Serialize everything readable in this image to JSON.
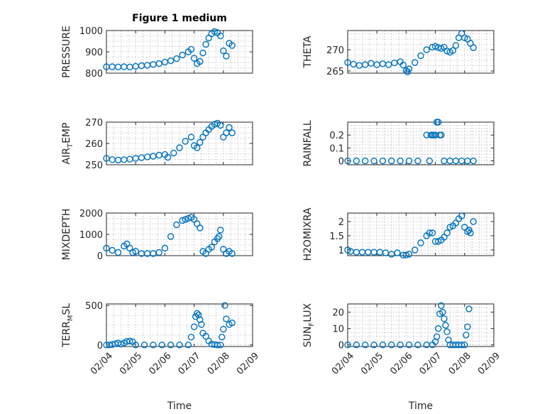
{
  "chart_data": [
    {
      "type": "scatter",
      "title": "Figure 1 medium",
      "xlabel": "",
      "ylabel": "PRESSURE",
      "ylim": [
        800,
        1000
      ],
      "yticks": [
        800,
        900,
        1000
      ],
      "yticklabels": [
        "800",
        "900",
        "1000"
      ],
      "x": [
        4.0,
        4.2,
        4.4,
        4.6,
        4.8,
        5.0,
        5.2,
        5.4,
        5.6,
        5.8,
        6.0,
        6.2,
        6.4,
        6.6,
        6.8,
        6.9,
        7.0,
        7.1,
        7.2,
        7.3,
        7.4,
        7.5,
        7.6,
        7.7,
        7.8,
        7.9,
        8.0,
        8.1,
        8.2,
        8.3
      ],
      "y": [
        830,
        830,
        829,
        830,
        829,
        832,
        835,
        837,
        841,
        845,
        852,
        858,
        868,
        885,
        900,
        912,
        870,
        845,
        855,
        895,
        935,
        965,
        985,
        995,
        990,
        975,
        905,
        880,
        940,
        930
      ]
    },
    {
      "type": "scatter",
      "title": "",
      "xlabel": "",
      "ylabel": "THETA",
      "ylim": [
        264.5,
        274.5
      ],
      "yticks": [
        265,
        270
      ],
      "yticklabels": [
        "265",
        "270"
      ],
      "x": [
        4.0,
        4.2,
        4.4,
        4.6,
        4.8,
        5.0,
        5.2,
        5.4,
        5.6,
        5.8,
        5.9,
        6.0,
        6.05,
        6.1,
        6.3,
        6.5,
        6.7,
        6.9,
        7.0,
        7.1,
        7.2,
        7.3,
        7.4,
        7.5,
        7.6,
        7.7,
        7.8,
        7.9,
        8.0,
        8.1,
        8.2,
        8.3
      ],
      "y": [
        267.0,
        266.6,
        266.3,
        266.5,
        266.8,
        266.5,
        266.7,
        266.5,
        266.9,
        267.2,
        266.4,
        265.1,
        264.8,
        265.5,
        267.0,
        268.6,
        270.0,
        270.6,
        270.8,
        270.5,
        270.3,
        270.6,
        269.7,
        269.4,
        269.8,
        271.0,
        272.8,
        273.8,
        272.8,
        272.5,
        271.5,
        270.5
      ]
    },
    {
      "type": "scatter",
      "title": "",
      "xlabel": "",
      "ylabel": "AIR_TEMP",
      "ylim": [
        250,
        270
      ],
      "yticks": [
        250,
        260,
        270
      ],
      "yticklabels": [
        "250",
        "260",
        "270"
      ],
      "x": [
        4.0,
        4.2,
        4.4,
        4.6,
        4.8,
        5.0,
        5.2,
        5.4,
        5.6,
        5.8,
        6.0,
        6.1,
        6.3,
        6.5,
        6.7,
        6.9,
        7.0,
        7.1,
        7.2,
        7.3,
        7.4,
        7.5,
        7.6,
        7.7,
        7.8,
        7.9,
        8.0,
        8.1,
        8.2,
        8.3
      ],
      "y": [
        253,
        252.4,
        252.2,
        252.4,
        252.6,
        253.0,
        253.3,
        253.7,
        254.0,
        254.5,
        254.8,
        253.5,
        255.5,
        258.0,
        261.0,
        263.0,
        259.0,
        258.0,
        260.5,
        263.0,
        265.0,
        266.5,
        268.0,
        269.0,
        269.5,
        268.5,
        263.0,
        265.0,
        267.5,
        265.0
      ]
    },
    {
      "type": "scatter",
      "title": "",
      "xlabel": "",
      "ylabel": "RAINFALL",
      "ylim": [
        -0.03,
        0.3
      ],
      "yticks": [
        0,
        0.1,
        0.2
      ],
      "yticklabels": [
        "0",
        "0.1",
        "0.2"
      ],
      "x": [
        4.0,
        4.3,
        4.6,
        4.9,
        5.2,
        5.5,
        5.8,
        6.1,
        6.4,
        6.7,
        6.8,
        6.85,
        6.9,
        6.95,
        7.0,
        7.05,
        7.1,
        7.15,
        7.2,
        7.3,
        7.5,
        7.7,
        7.9,
        8.1,
        8.3
      ],
      "y": [
        0,
        0,
        0,
        0,
        0,
        0,
        0,
        0,
        0,
        0.2,
        0,
        0.2,
        0.2,
        0.2,
        0.2,
        0.3,
        0.3,
        0.2,
        0.2,
        0,
        0,
        0,
        0,
        0,
        0
      ]
    },
    {
      "type": "scatter",
      "title": "",
      "xlabel": "",
      "ylabel": "MIXDEPTH",
      "ylim": [
        0,
        2000
      ],
      "yticks": [
        0,
        1000,
        2000
      ],
      "yticklabels": [
        "0",
        "1000",
        "2000"
      ],
      "x": [
        4.0,
        4.2,
        4.4,
        4.6,
        4.7,
        4.8,
        4.9,
        5.0,
        5.2,
        5.4,
        5.6,
        5.8,
        6.0,
        6.2,
        6.4,
        6.6,
        6.7,
        6.8,
        6.9,
        7.0,
        7.1,
        7.2,
        7.3,
        7.4,
        7.5,
        7.6,
        7.7,
        7.8,
        7.85,
        7.9,
        8.0,
        8.1,
        8.2,
        8.3
      ],
      "y": [
        350,
        250,
        150,
        450,
        550,
        350,
        150,
        200,
        100,
        100,
        100,
        150,
        350,
        900,
        1450,
        1650,
        1700,
        1750,
        1800,
        1700,
        1500,
        1300,
        200,
        100,
        300,
        400,
        650,
        800,
        900,
        1200,
        300,
        100,
        200,
        100
      ]
    },
    {
      "type": "scatter",
      "title": "",
      "xlabel": "",
      "ylabel": "H2OMIXRA",
      "ylim": [
        0.8,
        2.3
      ],
      "yticks": [
        1,
        1.5,
        2
      ],
      "yticklabels": [
        "1",
        "1.5",
        "2"
      ],
      "x": [
        4.0,
        4.1,
        4.3,
        4.5,
        4.7,
        4.9,
        5.1,
        5.3,
        5.5,
        5.7,
        5.9,
        6.0,
        6.1,
        6.3,
        6.5,
        6.7,
        6.8,
        6.9,
        7.0,
        7.1,
        7.2,
        7.3,
        7.4,
        7.5,
        7.6,
        7.7,
        7.8,
        7.9,
        8.0,
        8.1,
        8.15,
        8.2,
        8.3
      ],
      "y": [
        1.0,
        0.95,
        0.92,
        0.92,
        0.92,
        0.92,
        0.92,
        0.9,
        0.85,
        0.9,
        0.82,
        0.82,
        0.85,
        1.0,
        1.25,
        1.5,
        1.6,
        1.6,
        1.3,
        1.3,
        1.35,
        1.45,
        1.6,
        1.8,
        1.85,
        1.95,
        2.1,
        2.2,
        1.8,
        1.65,
        1.7,
        1.6,
        2.0
      ]
    },
    {
      "type": "scatter",
      "title": "",
      "xlabel": "Time",
      "ylabel": "TERR_MSL",
      "ylim": [
        -20,
        520
      ],
      "yticks": [
        0,
        500
      ],
      "yticklabels": [
        "0",
        "500"
      ],
      "xticks": [
        4,
        5,
        6,
        7,
        8,
        9
      ],
      "xticklabels": [
        "02/04",
        "02/05",
        "02/06",
        "02/07",
        "02/08",
        "02/09"
      ],
      "x": [
        4.0,
        4.1,
        4.2,
        4.3,
        4.4,
        4.5,
        4.6,
        4.7,
        4.8,
        4.9,
        5.0,
        5.3,
        5.6,
        5.9,
        6.2,
        6.5,
        6.8,
        6.9,
        7.0,
        7.05,
        7.1,
        7.15,
        7.2,
        7.25,
        7.3,
        7.4,
        7.5,
        7.6,
        7.7,
        7.8,
        7.9,
        7.95,
        8.0,
        8.05,
        8.1,
        8.2,
        8.3
      ],
      "y": [
        0,
        0,
        5,
        15,
        25,
        10,
        25,
        45,
        50,
        40,
        0,
        0,
        0,
        0,
        0,
        0,
        0,
        100,
        230,
        360,
        400,
        380,
        320,
        260,
        150,
        110,
        50,
        10,
        5,
        0,
        0,
        100,
        200,
        500,
        330,
        260,
        280
      ]
    },
    {
      "type": "scatter",
      "title": "",
      "xlabel": "Time",
      "ylabel": "SUN_FLUX",
      "ylim": [
        -1,
        25
      ],
      "yticks": [
        0,
        10,
        20
      ],
      "yticklabels": [
        "0",
        "10",
        "20"
      ],
      "xticks": [
        4,
        5,
        6,
        7,
        8,
        9
      ],
      "xticklabels": [
        "02/04",
        "02/05",
        "02/06",
        "02/07",
        "02/08",
        "02/09"
      ],
      "x": [
        4.0,
        4.3,
        4.6,
        4.9,
        5.2,
        5.5,
        5.8,
        6.1,
        6.4,
        6.7,
        6.9,
        7.0,
        7.05,
        7.1,
        7.15,
        7.2,
        7.25,
        7.3,
        7.35,
        7.4,
        7.45,
        7.5,
        7.6,
        7.7,
        7.8,
        7.9,
        8.0,
        8.05,
        8.1,
        8.15
      ],
      "y": [
        0,
        0,
        0,
        0,
        0,
        0,
        0,
        0,
        0,
        0,
        0,
        2,
        5,
        10,
        19,
        24,
        20,
        16,
        12,
        8,
        3,
        0,
        0,
        0,
        0,
        0,
        0,
        6,
        11,
        22
      ]
    }
  ]
}
